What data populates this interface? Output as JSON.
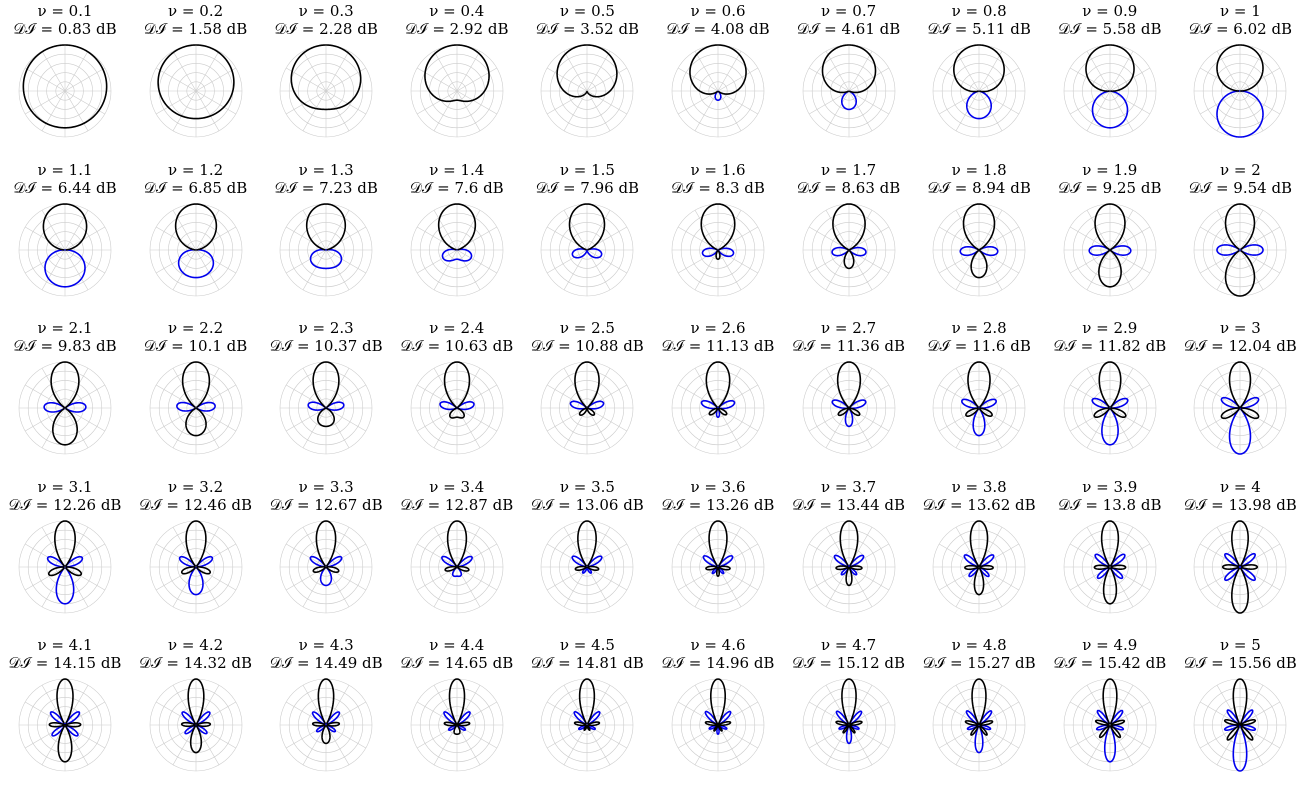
{
  "chart_data": {
    "type": "polar",
    "layout": "grid of 5 rows by 10 columns of polar plots",
    "grid": true,
    "colors": {
      "front_lobe": "#000000",
      "rear_lobe": "#0000ee",
      "grid": "#cccccc"
    },
    "nu_prefix": "ν = ",
    "di_prefix": "𝒟ℐ = ",
    "di_unit": " dB",
    "panels": [
      {
        "nu": "0.1",
        "di": "0.83"
      },
      {
        "nu": "0.2",
        "di": "1.58"
      },
      {
        "nu": "0.3",
        "di": "2.28"
      },
      {
        "nu": "0.4",
        "di": "2.92"
      },
      {
        "nu": "0.5",
        "di": "3.52"
      },
      {
        "nu": "0.6",
        "di": "4.08"
      },
      {
        "nu": "0.7",
        "di": "4.61"
      },
      {
        "nu": "0.8",
        "di": "5.11"
      },
      {
        "nu": "0.9",
        "di": "5.58"
      },
      {
        "nu": "1",
        "di": "6.02"
      },
      {
        "nu": "1.1",
        "di": "6.44"
      },
      {
        "nu": "1.2",
        "di": "6.85"
      },
      {
        "nu": "1.3",
        "di": "7.23"
      },
      {
        "nu": "1.4",
        "di": "7.6"
      },
      {
        "nu": "1.5",
        "di": "7.96"
      },
      {
        "nu": "1.6",
        "di": "8.3"
      },
      {
        "nu": "1.7",
        "di": "8.63"
      },
      {
        "nu": "1.8",
        "di": "8.94"
      },
      {
        "nu": "1.9",
        "di": "9.25"
      },
      {
        "nu": "2",
        "di": "9.54"
      },
      {
        "nu": "2.1",
        "di": "9.83"
      },
      {
        "nu": "2.2",
        "di": "10.1"
      },
      {
        "nu": "2.3",
        "di": "10.37"
      },
      {
        "nu": "2.4",
        "di": "10.63"
      },
      {
        "nu": "2.5",
        "di": "10.88"
      },
      {
        "nu": "2.6",
        "di": "11.13"
      },
      {
        "nu": "2.7",
        "di": "11.36"
      },
      {
        "nu": "2.8",
        "di": "11.6"
      },
      {
        "nu": "2.9",
        "di": "11.82"
      },
      {
        "nu": "3",
        "di": "12.04"
      },
      {
        "nu": "3.1",
        "di": "12.26"
      },
      {
        "nu": "3.2",
        "di": "12.46"
      },
      {
        "nu": "3.3",
        "di": "12.67"
      },
      {
        "nu": "3.4",
        "di": "12.87"
      },
      {
        "nu": "3.5",
        "di": "13.06"
      },
      {
        "nu": "3.6",
        "di": "13.26"
      },
      {
        "nu": "3.7",
        "di": "13.44"
      },
      {
        "nu": "3.8",
        "di": "13.62"
      },
      {
        "nu": "3.9",
        "di": "13.8"
      },
      {
        "nu": "4",
        "di": "13.98"
      },
      {
        "nu": "4.1",
        "di": "14.15"
      },
      {
        "nu": "4.2",
        "di": "14.32"
      },
      {
        "nu": "4.3",
        "di": "14.49"
      },
      {
        "nu": "4.4",
        "di": "14.65"
      },
      {
        "nu": "4.5",
        "di": "14.81"
      },
      {
        "nu": "4.6",
        "di": "14.96"
      },
      {
        "nu": "4.7",
        "di": "15.12"
      },
      {
        "nu": "4.8",
        "di": "15.27"
      },
      {
        "nu": "4.9",
        "di": "15.42"
      },
      {
        "nu": "5",
        "di": "15.56"
      }
    ]
  }
}
